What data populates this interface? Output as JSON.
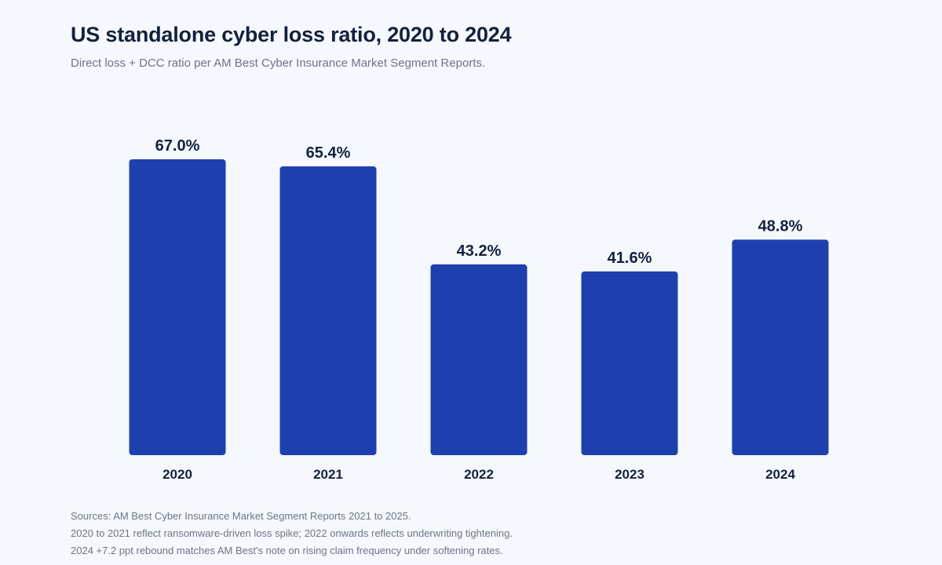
{
  "header": {
    "title": "US standalone cyber loss ratio, 2020 to 2024",
    "subtitle": "Direct loss + DCC ratio per AM Best Cyber Insurance Market Segment Reports."
  },
  "chart_data": {
    "type": "bar",
    "title": "US standalone cyber loss ratio, 2020 to 2024",
    "xlabel": "",
    "ylabel": "",
    "categories": [
      "2020",
      "2021",
      "2022",
      "2023",
      "2024"
    ],
    "values": [
      67.0,
      65.4,
      43.2,
      41.6,
      48.8
    ],
    "value_labels": [
      "67.0%",
      "65.4%",
      "43.2%",
      "41.6%",
      "48.8%"
    ],
    "ylim": [
      0,
      67.0
    ],
    "grid": false,
    "bar_color": "#1e40af"
  },
  "footnotes": [
    "Sources: AM Best Cyber Insurance Market Segment Reports 2021 to 2025.",
    "2020 to 2021 reflect ransomware-driven loss spike; 2022 onwards reflects underwriting tightening.",
    "2024 +7.2 ppt rebound matches AM Best's note on rising claim frequency under softening rates."
  ]
}
